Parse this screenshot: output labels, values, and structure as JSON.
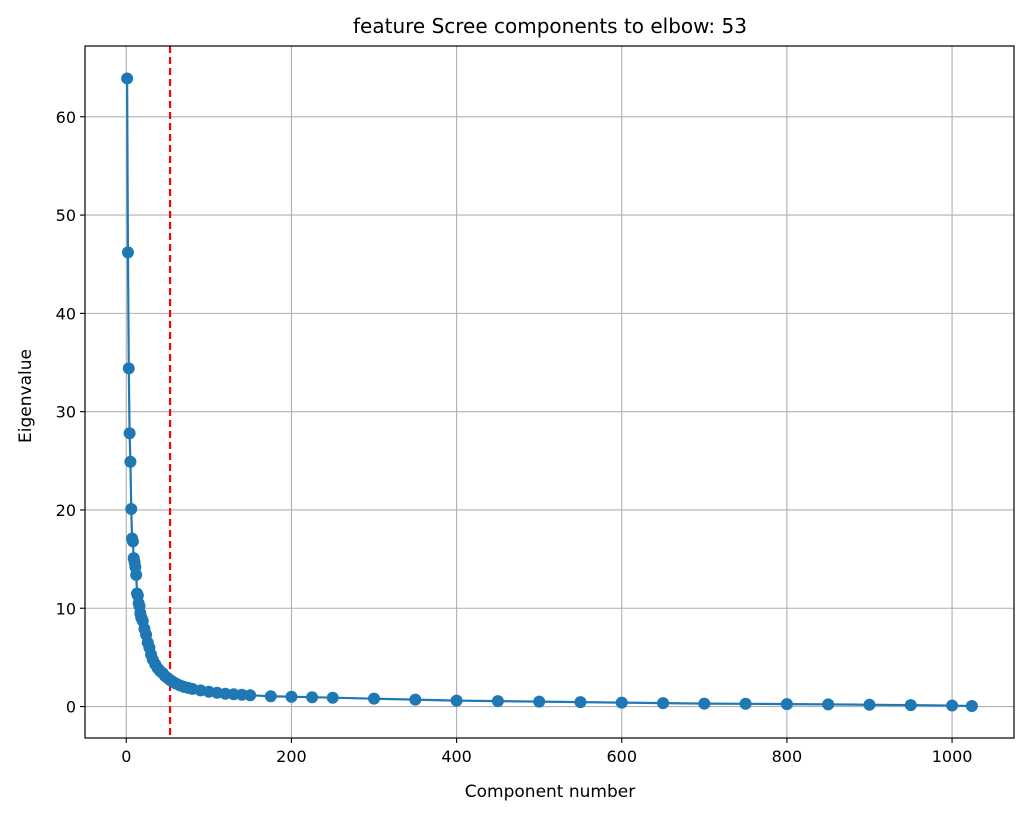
{
  "chart_data": {
    "type": "line",
    "title": "feature Scree components to elbow: 53",
    "xlabel": "Component number",
    "ylabel": "Eigenvalue",
    "xlim": [
      -50,
      1075
    ],
    "ylim": [
      -3.2,
      67.2
    ],
    "xticks": [
      0,
      200,
      400,
      600,
      800,
      1000
    ],
    "yticks": [
      0,
      10,
      20,
      30,
      40,
      50,
      60
    ],
    "grid": true,
    "elbow": 53,
    "colors": {
      "series": "#1f77b4",
      "elbow_line": "#ff0000",
      "grid": "#b0b0b0"
    },
    "series": [
      {
        "x": [
          1,
          2,
          3,
          4,
          5,
          6,
          7,
          8,
          9,
          10,
          11,
          12,
          13,
          14,
          15,
          16,
          17,
          18,
          19,
          20,
          22,
          24,
          26,
          28,
          30,
          32,
          35,
          38,
          41,
          44,
          47,
          50,
          53,
          56,
          60,
          65,
          70,
          75,
          80,
          90,
          100,
          110,
          120,
          130,
          140,
          150,
          175,
          200,
          225,
          250,
          300,
          350,
          400,
          450,
          500,
          550,
          600,
          650,
          700,
          750,
          800,
          850,
          900,
          950,
          1000,
          1024
        ],
        "y": [
          63.9,
          46.2,
          34.4,
          27.8,
          24.9,
          20.1,
          17.1,
          16.8,
          15.1,
          14.7,
          14.2,
          13.4,
          11.5,
          11.3,
          10.5,
          10.2,
          9.5,
          9.1,
          8.9,
          8.7,
          7.9,
          7.3,
          6.5,
          6.0,
          5.3,
          4.8,
          4.3,
          3.9,
          3.6,
          3.4,
          3.1,
          2.9,
          2.7,
          2.55,
          2.35,
          2.15,
          2.0,
          1.9,
          1.8,
          1.65,
          1.5,
          1.4,
          1.3,
          1.25,
          1.2,
          1.15,
          1.05,
          1.0,
          0.95,
          0.9,
          0.8,
          0.7,
          0.6,
          0.55,
          0.5,
          0.45,
          0.4,
          0.35,
          0.3,
          0.28,
          0.25,
          0.22,
          0.18,
          0.15,
          0.1,
          0.05
        ]
      }
    ]
  }
}
